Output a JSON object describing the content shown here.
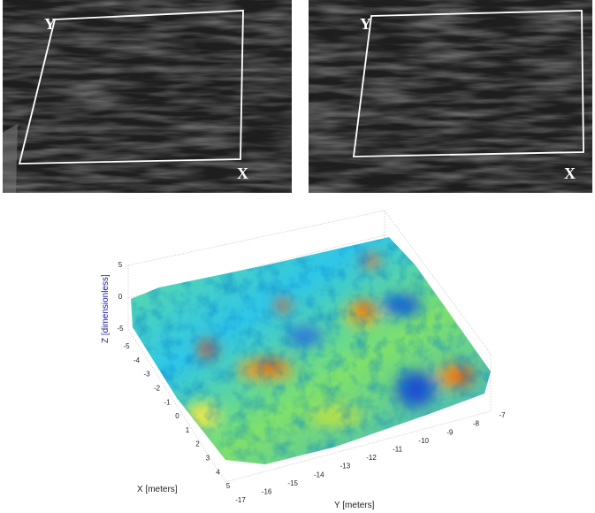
{
  "photos": [
    {
      "y_label": "Y",
      "x_label": "X"
    },
    {
      "y_label": "Y",
      "x_label": "X"
    }
  ],
  "surface_plot": {
    "z_label": "Z [dimensionless]",
    "x_label": "X [meters]",
    "y_label": "Y  [meters]",
    "z_ticks": [
      5,
      0,
      -5
    ],
    "x_ticks": [
      -5,
      -4,
      -3,
      -2,
      -1,
      0,
      1,
      2,
      3,
      4,
      5
    ],
    "y_ticks": [
      -17,
      -16,
      -15,
      -14,
      -13,
      -12,
      -11,
      -10,
      -9,
      -8,
      -7
    ]
  }
}
